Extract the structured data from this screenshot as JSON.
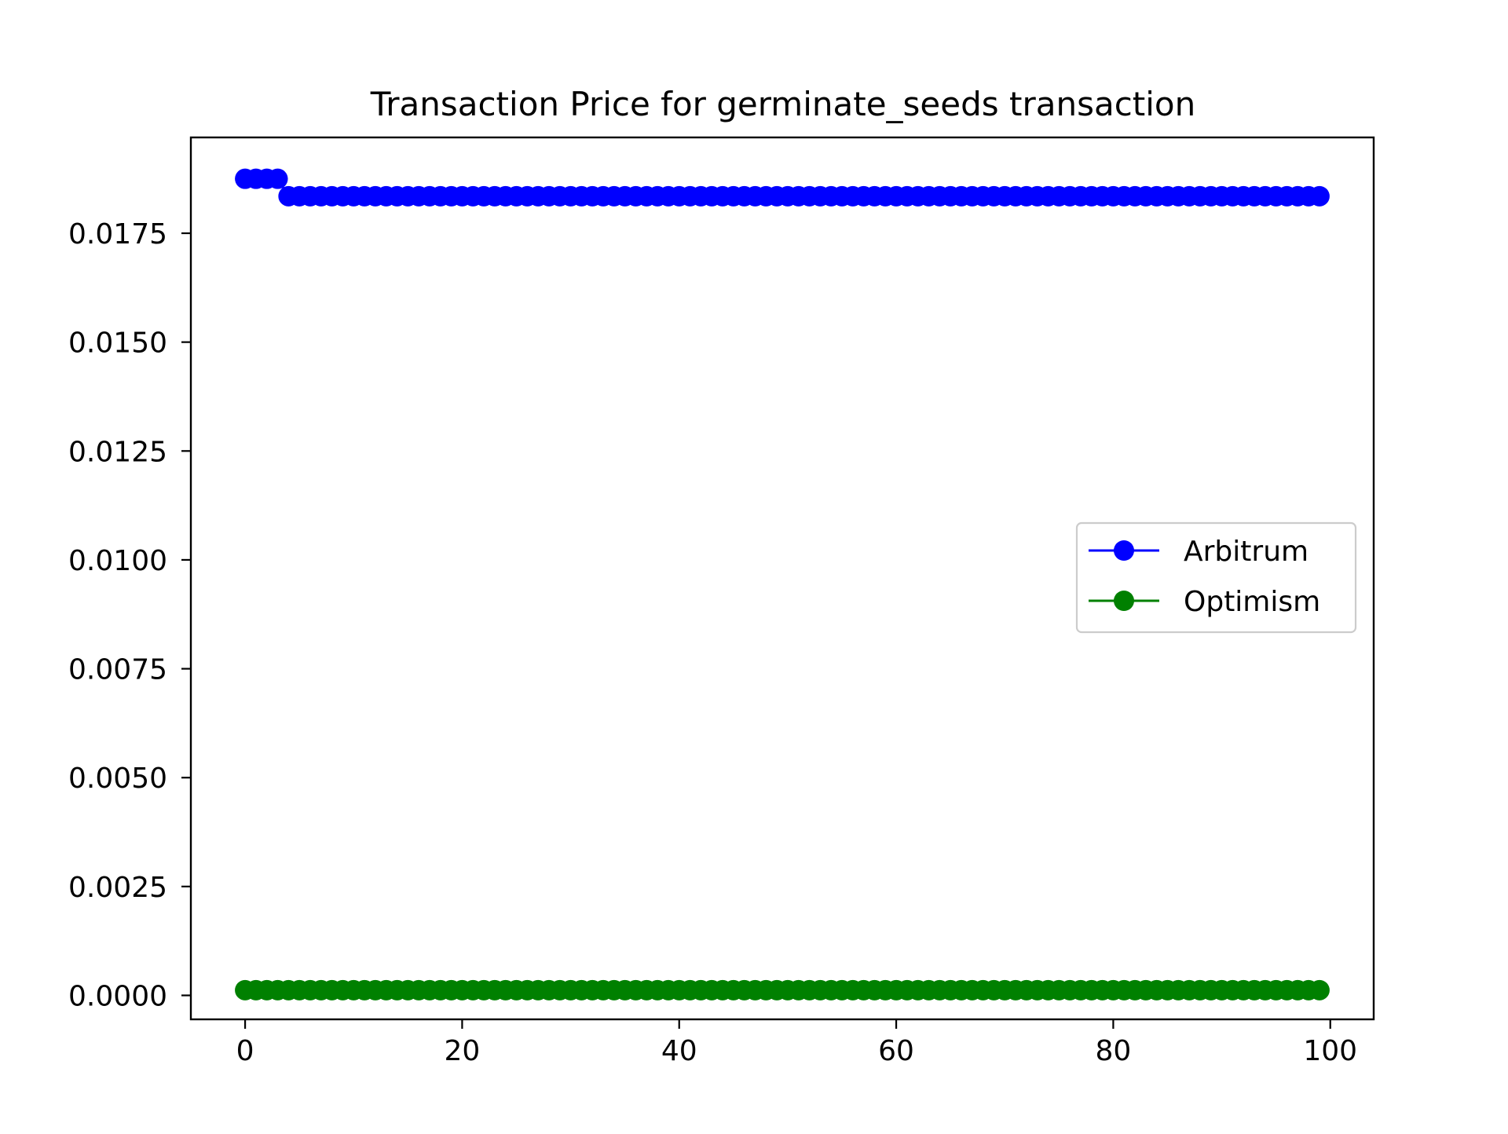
{
  "chart_data": {
    "type": "line",
    "title": "Transaction Price for germinate_seeds transaction",
    "xlabel": "",
    "ylabel": "",
    "xlim": [
      -5,
      104
    ],
    "ylim": [
      -0.00055,
      0.0197
    ],
    "x_ticks": [
      0,
      20,
      40,
      60,
      80,
      100
    ],
    "x_tick_labels": [
      "0",
      "20",
      "40",
      "60",
      "80",
      "100"
    ],
    "y_ticks": [
      0.0,
      0.0025,
      0.005,
      0.0075,
      0.01,
      0.0125,
      0.015,
      0.0175
    ],
    "y_tick_labels": [
      "0.0000",
      "0.0025",
      "0.0050",
      "0.0075",
      "0.0100",
      "0.0125",
      "0.0150",
      "0.0175"
    ],
    "grid": false,
    "legend_position": "center-right",
    "series": [
      {
        "name": "Arbitrum",
        "color": "#0000ff",
        "marker": "circle",
        "x": [
          0,
          99
        ],
        "segments": [
          {
            "from": 0,
            "to": 3,
            "value": 0.01875
          },
          {
            "from": 4,
            "to": 99,
            "value": 0.01835
          }
        ]
      },
      {
        "name": "Optimism",
        "color": "#008000",
        "marker": "circle",
        "x": [
          0,
          99
        ],
        "segments": [
          {
            "from": 0,
            "to": 99,
            "value": 0.00012
          }
        ]
      }
    ]
  }
}
